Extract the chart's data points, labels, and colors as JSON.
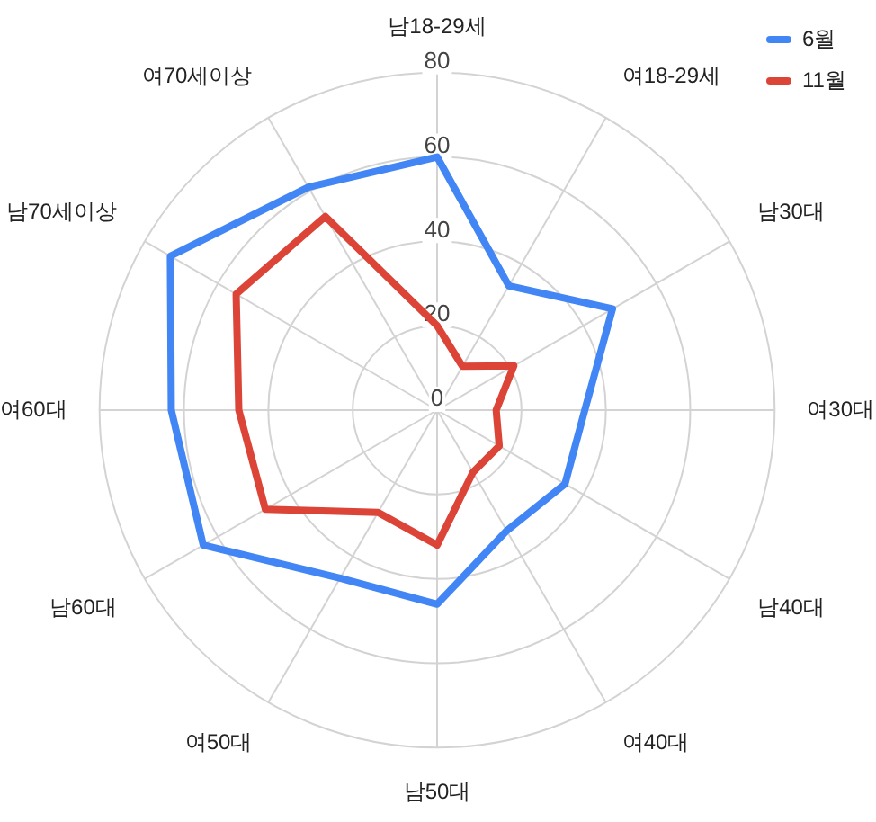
{
  "chart_data": {
    "type": "radar",
    "categories": [
      "남18-29세",
      "여18-29세",
      "남30대",
      "여30대",
      "남40대",
      "여40대",
      "남50대",
      "여50대",
      "남60대",
      "여60대",
      "남70세이상",
      "여70세이상"
    ],
    "series": [
      {
        "name": "6월",
        "color": "#4285f4",
        "values": [
          60,
          34,
          48,
          35,
          35,
          33,
          46,
          46,
          64,
          63,
          73,
          61
        ]
      },
      {
        "name": "11월",
        "color": "#db4437",
        "values": [
          20,
          12,
          21,
          14,
          17,
          17,
          32,
          28,
          47,
          47,
          55,
          53
        ]
      }
    ],
    "ylim": [
      0,
      80
    ],
    "yticks": [
      0,
      20,
      40,
      60,
      80
    ],
    "grid": true,
    "legend": "top right"
  }
}
